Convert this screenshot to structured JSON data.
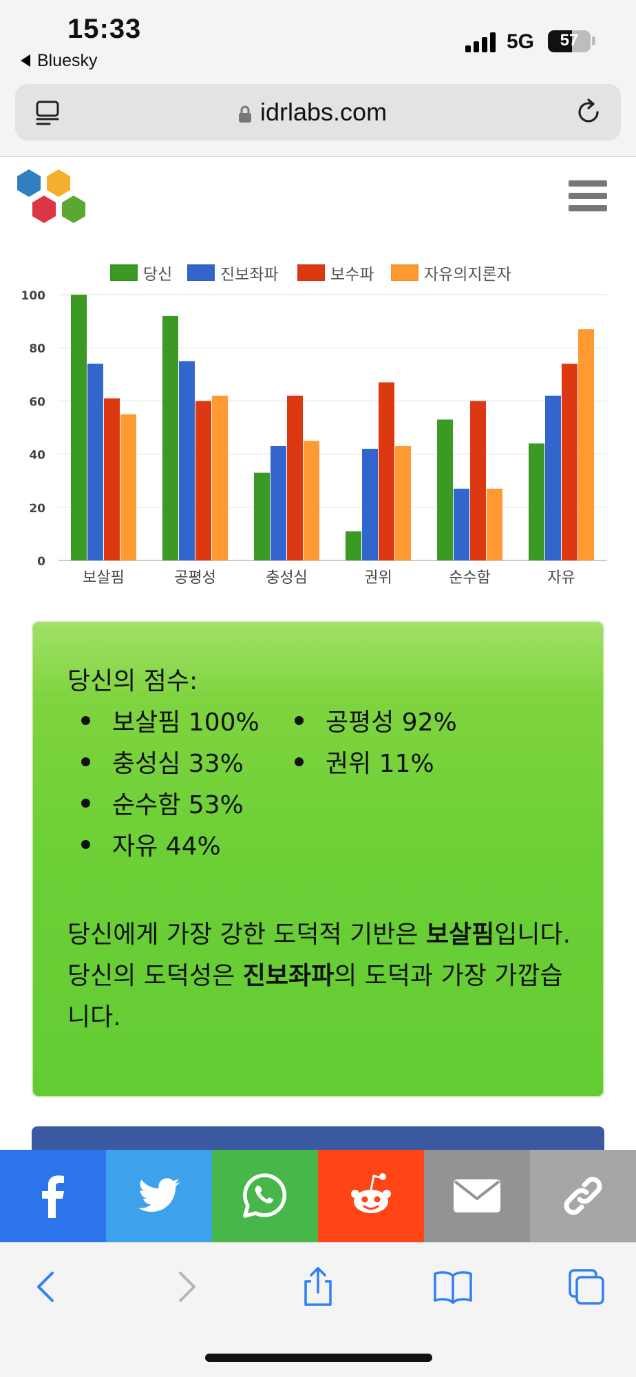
{
  "status_bar": {
    "time": "15:33",
    "back_app": "Bluesky",
    "network": "5G",
    "battery": "57"
  },
  "browser": {
    "url": "idrlabs.com"
  },
  "chart_data": {
    "type": "bar",
    "categories": [
      "보살핌",
      "공평성",
      "충성심",
      "권위",
      "순수함",
      "자유"
    ],
    "series": [
      {
        "name": "당신",
        "color": "#3a9a23",
        "values": [
          100,
          92,
          33,
          11,
          53,
          44
        ]
      },
      {
        "name": "진보좌파",
        "color": "#3366cc",
        "values": [
          74,
          75,
          43,
          42,
          27,
          62
        ]
      },
      {
        "name": "보수파",
        "color": "#dc3912",
        "values": [
          61,
          60,
          62,
          67,
          60,
          74
        ]
      },
      {
        "name": "자유의지론자",
        "color": "#ff9a33",
        "values": [
          55,
          62,
          45,
          43,
          27,
          87
        ]
      }
    ],
    "yticks": [
      "0",
      "20",
      "40",
      "60",
      "80",
      "100"
    ],
    "ylim": [
      0,
      100
    ],
    "grid": true,
    "legend": "top"
  },
  "result": {
    "title": "당신의 점수:",
    "scores": [
      "보살핌 100%",
      "공평성 92%",
      "충성심 33%",
      "권위 11%",
      "순수함 53%",
      "자유 44%"
    ],
    "line1_a": "당신에게 가장 강한 도덕적 기반은 ",
    "line1_bold": "보살핌",
    "line1_b": "입니다.",
    "line2_a": "당신의 도덕성은 ",
    "line2_bold": "진보좌파",
    "line2_b": "의 도덕과 가장 가깝습니다."
  },
  "share": {
    "buttons": [
      {
        "icon": "facebook-icon",
        "color": "#2b74ea"
      },
      {
        "icon": "twitter-icon",
        "color": "#3ea1ec"
      },
      {
        "icon": "whatsapp-icon",
        "color": "#46b748"
      },
      {
        "icon": "reddit-icon",
        "color": "#ff4415"
      },
      {
        "icon": "email-icon",
        "color": "#939393"
      },
      {
        "icon": "link-icon",
        "color": "#a6a6a6"
      }
    ]
  }
}
